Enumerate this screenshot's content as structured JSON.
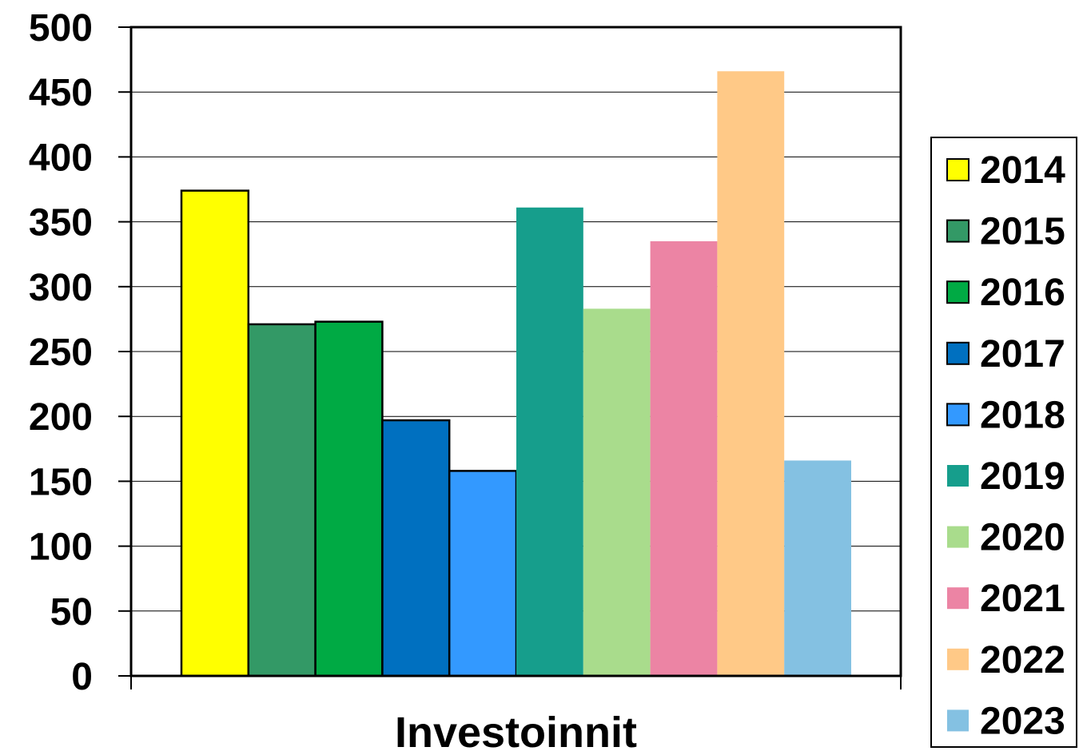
{
  "chart_data": {
    "type": "bar",
    "categories": [
      "Investoinnit"
    ],
    "series": [
      {
        "name": "2014",
        "values": [
          374
        ],
        "color": "#FFFF00",
        "outlined": true
      },
      {
        "name": "2015",
        "values": [
          271
        ],
        "color": "#339966",
        "outlined": true
      },
      {
        "name": "2016",
        "values": [
          273
        ],
        "color": "#00AA44",
        "outlined": true
      },
      {
        "name": "2017",
        "values": [
          197
        ],
        "color": "#0070C0",
        "outlined": true
      },
      {
        "name": "2018",
        "values": [
          158
        ],
        "color": "#3399FF",
        "outlined": true
      },
      {
        "name": "2019",
        "values": [
          361
        ],
        "color": "#169E8C",
        "outlined": false
      },
      {
        "name": "2020",
        "values": [
          283
        ],
        "color": "#A9DC8C",
        "outlined": false
      },
      {
        "name": "2021",
        "values": [
          335
        ],
        "color": "#EC84A4",
        "outlined": false
      },
      {
        "name": "2022",
        "values": [
          466
        ],
        "color": "#FFC987",
        "outlined": false
      },
      {
        "name": "2023",
        "values": [
          166
        ],
        "color": "#84C1E2",
        "outlined": false
      }
    ],
    "title": "",
    "xlabel": "",
    "ylabel": "",
    "ylim": [
      0,
      500
    ],
    "yticks": [
      "0",
      "50",
      "100",
      "150",
      "200",
      "250",
      "300",
      "350",
      "400",
      "450",
      "500"
    ],
    "grid": true,
    "legend_position": "right"
  }
}
